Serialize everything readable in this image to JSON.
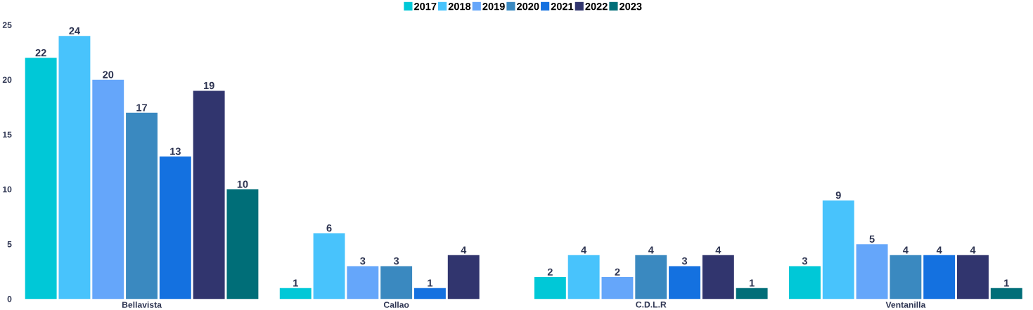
{
  "chart_data": {
    "type": "bar",
    "categories": [
      "Bellavista",
      "Callao",
      "C.D.L.R",
      "Ventanilla"
    ],
    "series": [
      {
        "name": "2017",
        "color": "#00c8d7",
        "values": [
          22,
          1,
          2,
          3
        ]
      },
      {
        "name": "2018",
        "color": "#48c3fc",
        "values": [
          24,
          6,
          4,
          9
        ]
      },
      {
        "name": "2019",
        "color": "#65a6fa",
        "values": [
          20,
          3,
          2,
          5
        ]
      },
      {
        "name": "2020",
        "color": "#3a89c0",
        "values": [
          17,
          3,
          4,
          4
        ]
      },
      {
        "name": "2021",
        "color": "#1471e0",
        "values": [
          13,
          1,
          3,
          4
        ]
      },
      {
        "name": "2022",
        "color": "#31356e",
        "values": [
          19,
          4,
          4,
          4
        ]
      },
      {
        "name": "2023",
        "color": "#006e78",
        "values": [
          10,
          null,
          1,
          1
        ]
      }
    ],
    "ylim": [
      0,
      25
    ],
    "yticks": [
      0,
      5,
      10,
      15,
      20,
      25
    ],
    "data_labels": true,
    "legend": "top"
  }
}
